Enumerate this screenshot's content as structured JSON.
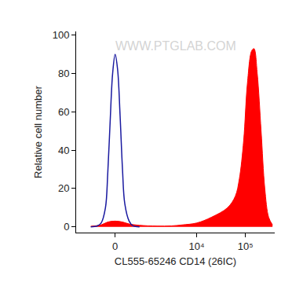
{
  "chart_data": {
    "type": "line",
    "xlabel": "CL555-65246 CD14 (26IC)",
    "ylabel": "Relative cell number",
    "annotations": [
      {
        "text": "WWW.PTGLAB.COM"
      }
    ],
    "xlim": [
      -1300,
      400000
    ],
    "xticks": [
      0,
      {
        "value": 10000,
        "label": "10⁴"
      },
      {
        "value": 100000,
        "label": "10⁵"
      }
    ],
    "ylim": [
      -3,
      102
    ],
    "yticks": [
      0,
      20,
      40,
      60,
      80,
      100
    ],
    "grid": false,
    "series": [
      {
        "type": "line",
        "color": "#1a1aa0",
        "x": [
          -600,
          -400,
          -300,
          -200,
          -150,
          -100,
          -50,
          0,
          50,
          100,
          150,
          200,
          300,
          400,
          600
        ],
        "values": [
          0,
          0.5,
          2,
          10,
          28,
          55,
          80,
          90,
          82,
          58,
          30,
          12,
          3,
          0.5,
          0
        ]
      },
      {
        "type": "area",
        "color": "#ff0000",
        "x": [
          -600,
          -300,
          -150,
          0,
          150,
          300,
          600,
          1500,
          3000,
          5000,
          10000,
          20000,
          43000,
          62000,
          75000,
          92000,
          110000,
          135000,
          150000,
          175000,
          210000,
          250000,
          300000,
          360000
        ],
        "values": [
          0.3,
          1,
          2.5,
          3,
          2.5,
          1.5,
          0.8,
          0.4,
          0.5,
          1,
          2,
          5,
          10,
          16,
          25,
          45,
          75,
          92,
          93,
          80,
          50,
          20,
          5,
          1
        ]
      }
    ]
  }
}
